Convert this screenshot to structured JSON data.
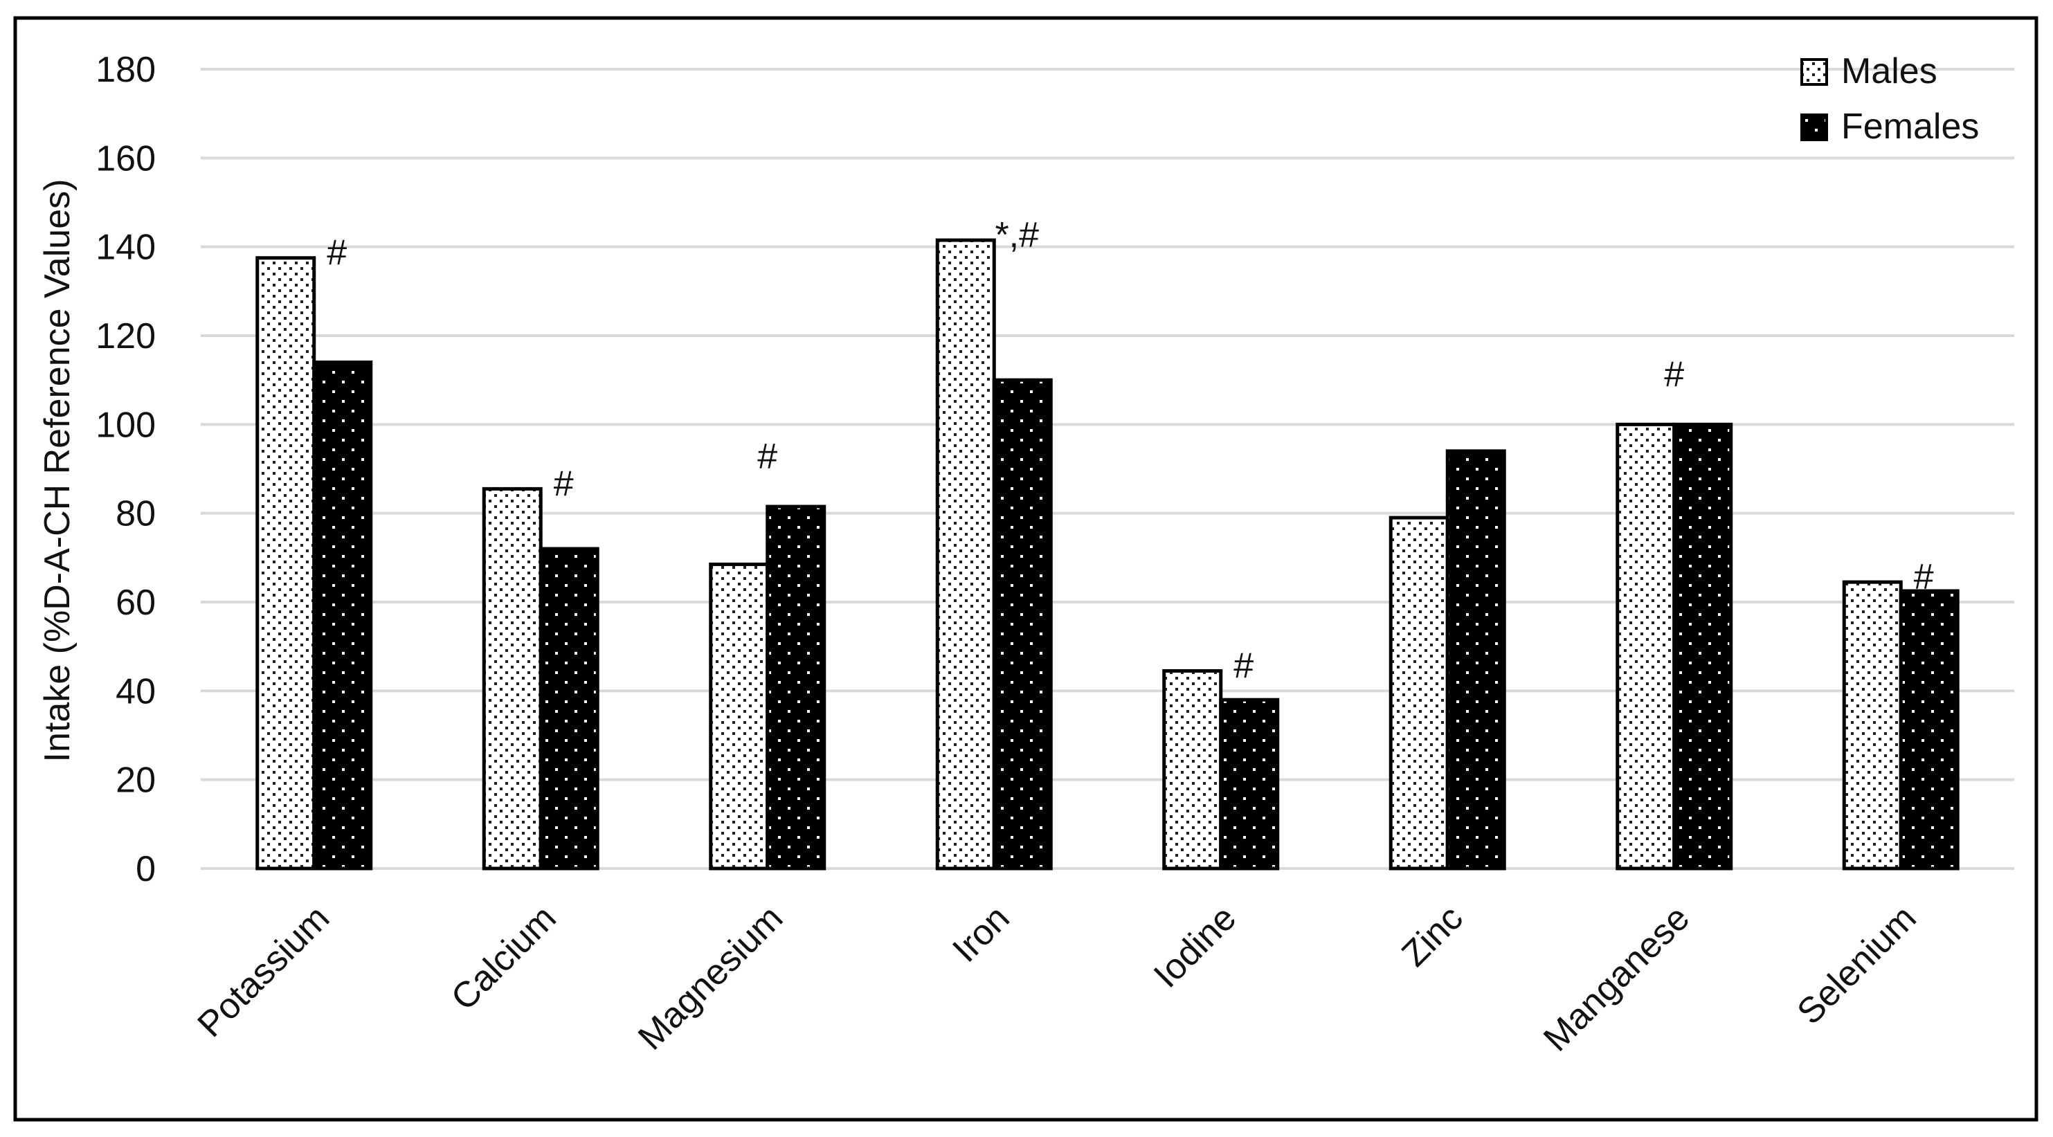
{
  "chart_data": {
    "type": "bar",
    "categories": [
      "Potassium",
      "Calcium",
      "Magnesium",
      "Iron",
      "Iodine",
      "Zinc",
      "Manganese",
      "Selenium"
    ],
    "series": [
      {
        "name": "Males",
        "values": [
          137.5,
          85.5,
          68.5,
          141.5,
          44.5,
          79,
          100,
          64.5
        ],
        "color": "#ffffff",
        "pattern": "dots-dark-on-white"
      },
      {
        "name": "Females",
        "values": [
          114,
          72,
          81.5,
          110,
          38,
          94,
          100,
          62.5
        ],
        "color": "#000000",
        "pattern": "dots-white-on-black"
      }
    ],
    "annotations": [
      "#",
      "#",
      "#",
      "*,#",
      "#",
      "",
      "#",
      "#"
    ],
    "ylabel": "Intake (%D-A-CH Reference Values)",
    "xlabel": "",
    "title": "",
    "ylim": [
      0,
      180
    ],
    "yticks": [
      0,
      20,
      40,
      60,
      80,
      100,
      120,
      140,
      160,
      180
    ],
    "grid": true,
    "legend_position": "top-right"
  }
}
